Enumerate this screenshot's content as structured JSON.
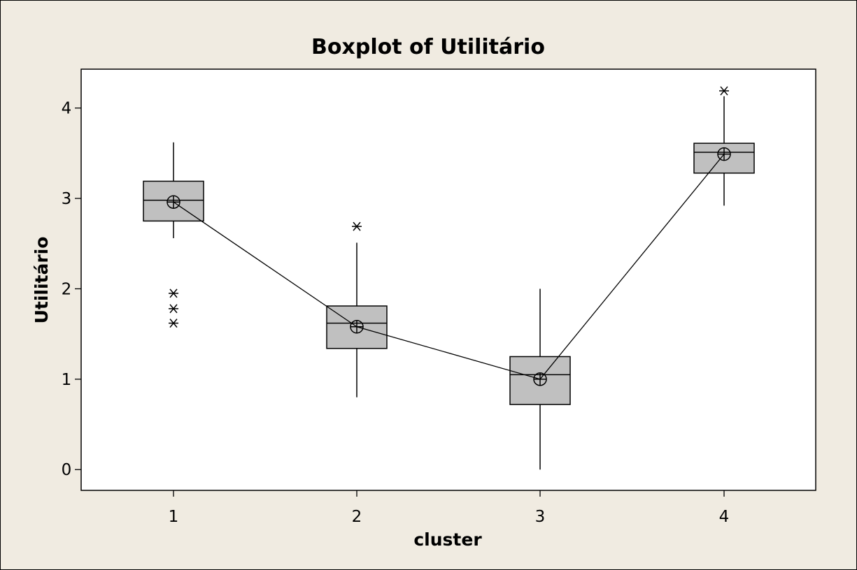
{
  "chart_data": {
    "type": "boxplot",
    "title": "Boxplot of Utilitário",
    "xlabel": "cluster",
    "ylabel": "Utilitário",
    "ylim": [
      -0.23,
      4.43
    ],
    "yticks": [
      0,
      1,
      2,
      3,
      4
    ],
    "categories": [
      "1",
      "2",
      "3",
      "4"
    ],
    "grid": false,
    "legend": "none",
    "colors": {
      "box_fill": "#c0c0c0",
      "line": "#000000",
      "plot_bg": "#ffffff",
      "figure_bg": "#f0ebe1"
    },
    "boxes": [
      {
        "category": "1",
        "whisker_low": 2.56,
        "q1": 2.75,
        "median": 2.98,
        "q3": 3.19,
        "whisker_high": 3.62,
        "mean": 2.96,
        "outliers": [
          1.95,
          1.78,
          1.62
        ]
      },
      {
        "category": "2",
        "whisker_low": 0.8,
        "q1": 1.34,
        "median": 1.62,
        "q3": 1.81,
        "whisker_high": 2.51,
        "mean": 1.58,
        "outliers": [
          2.69
        ]
      },
      {
        "category": "3",
        "whisker_low": 0.0,
        "q1": 0.72,
        "median": 1.05,
        "q3": 1.25,
        "whisker_high": 2.0,
        "mean": 1.0,
        "outliers": []
      },
      {
        "category": "4",
        "whisker_low": 2.92,
        "q1": 3.28,
        "median": 3.51,
        "q3": 3.61,
        "whisker_high": 4.13,
        "mean": 3.49,
        "outliers": [
          4.19
        ]
      }
    ],
    "mean_connect_line": true
  }
}
